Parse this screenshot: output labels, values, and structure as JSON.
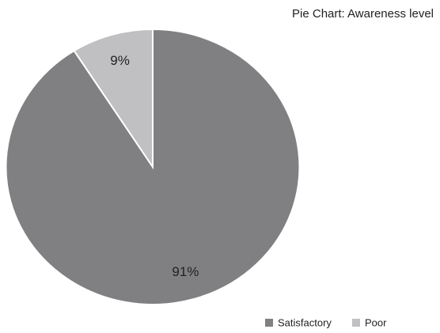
{
  "chart_data": {
    "type": "pie",
    "title": "Pie Chart: Awareness level",
    "categories": [
      "Satisfactory",
      "Poor"
    ],
    "values": [
      91,
      9
    ],
    "value_labels": [
      "91%",
      "9%"
    ],
    "colors": [
      "#808083",
      "#c0c0c3"
    ],
    "legend": "bottom-right"
  }
}
